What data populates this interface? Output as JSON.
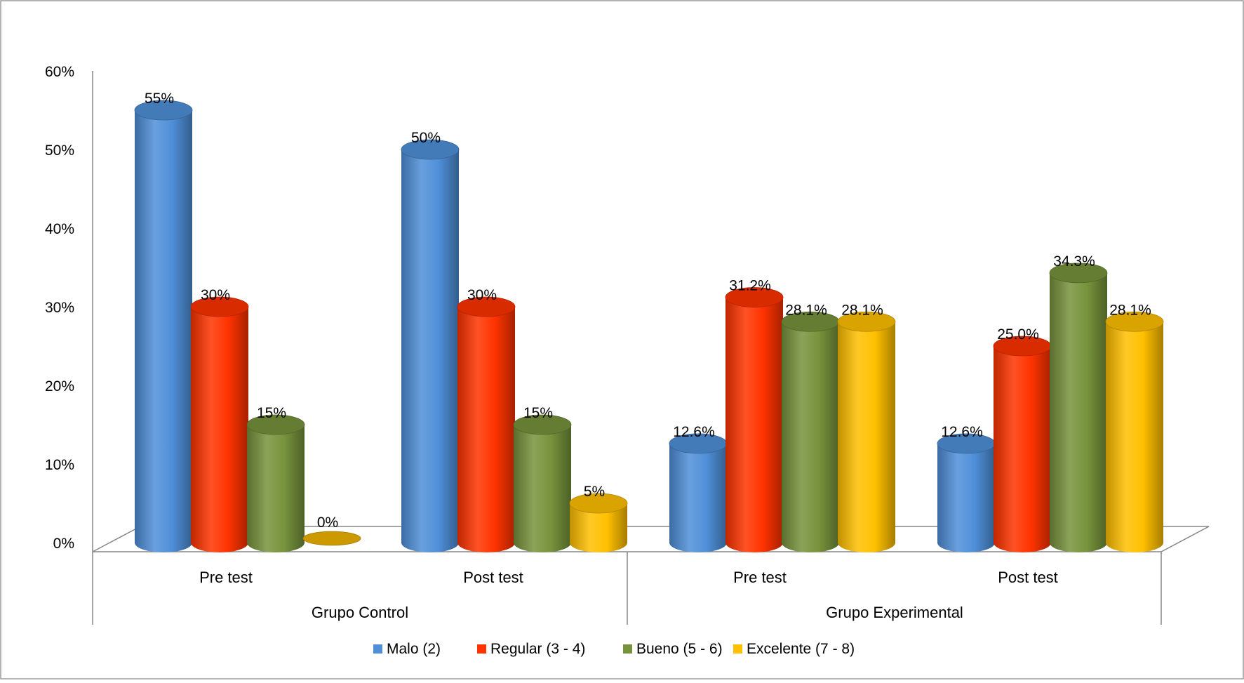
{
  "chart_data": {
    "type": "bar",
    "variant": "3d-cylinder",
    "title": "",
    "xlabel": "",
    "ylabel": "",
    "ylim": [
      0,
      0.6
    ],
    "y_ticks": [
      "0%",
      "10%",
      "20%",
      "30%",
      "40%",
      "50%",
      "60%"
    ],
    "grid": false,
    "legend_position": "bottom",
    "groups": [
      {
        "label": "Grupo Control",
        "categories": [
          "Pre test",
          "Post test"
        ]
      },
      {
        "label": "Grupo Experimental",
        "categories": [
          "Pre test",
          "Post test"
        ]
      }
    ],
    "categories": [
      "Pre test",
      "Post test",
      "Pre test",
      "Post test"
    ],
    "series": [
      {
        "name": "Malo (2)",
        "color": "#4f8fd8",
        "values": [
          0.55,
          0.5,
          0.126,
          0.126
        ],
        "labels": [
          "55%",
          "50%",
          "12.6%",
          "12.6%"
        ]
      },
      {
        "name": "Regular (3 - 4)",
        "color": "#ff3300",
        "values": [
          0.3,
          0.3,
          0.312,
          0.25
        ],
        "labels": [
          "30%",
          "30%",
          "31.2%",
          "25.0%"
        ]
      },
      {
        "name": "Bueno (5 - 6)",
        "color": "#77933c",
        "values": [
          0.15,
          0.15,
          0.281,
          0.343
        ],
        "labels": [
          "15%",
          "15%",
          "28.1%",
          "34.3%"
        ]
      },
      {
        "name": "Excelente (7 - 8)",
        "color": "#ffc000",
        "values": [
          0.0,
          0.05,
          0.281,
          0.281
        ],
        "labels": [
          "0%",
          "5%",
          "28.1%",
          "28.1%"
        ]
      }
    ]
  }
}
